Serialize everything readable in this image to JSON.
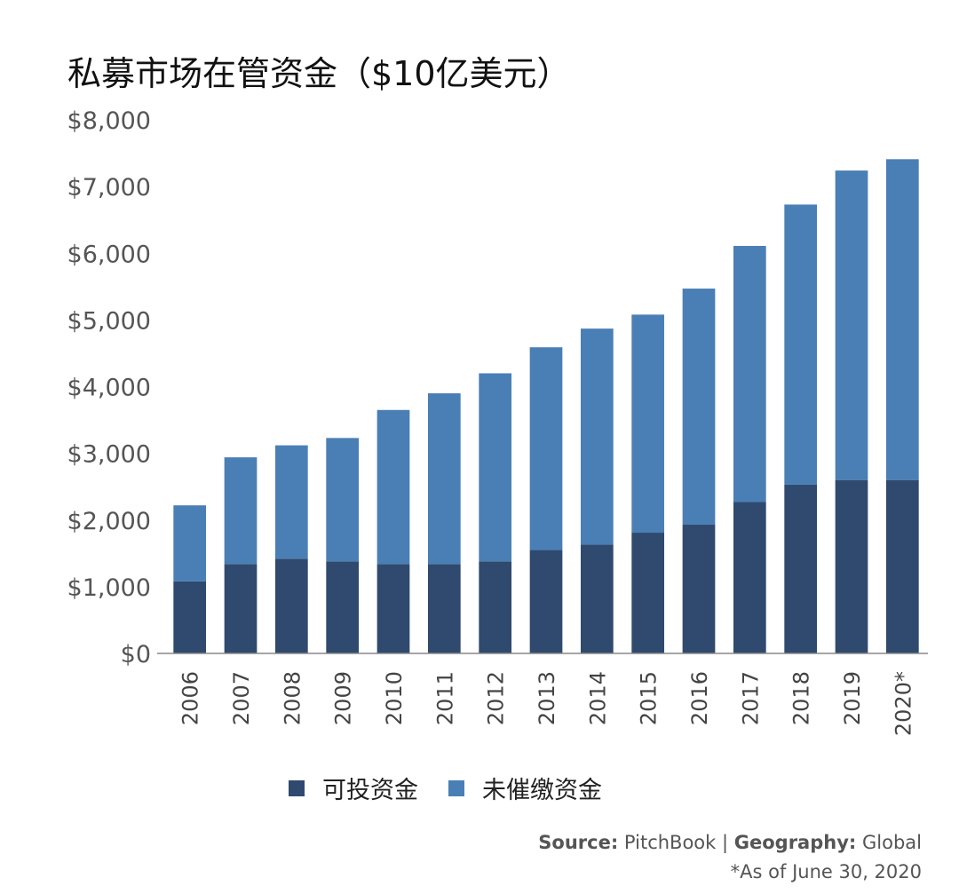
{
  "chart_data": {
    "type": "bar",
    "stacked": true,
    "title": "私募市场在管资金（$10亿美元）",
    "categories": [
      "2006",
      "2007",
      "2008",
      "2009",
      "2010",
      "2011",
      "2012",
      "2013",
      "2014",
      "2015",
      "2016",
      "2017",
      "2018",
      "2019",
      "2020*"
    ],
    "series": [
      {
        "name": "可投资金",
        "color": "#2f4a6e",
        "values": [
          1080,
          1340,
          1420,
          1380,
          1340,
          1340,
          1380,
          1550,
          1630,
          1810,
          1930,
          2270,
          2530,
          2600,
          2600
        ]
      },
      {
        "name": "未催缴资金",
        "color": "#4a7fb5",
        "values": [
          1140,
          1600,
          1700,
          1850,
          2310,
          2560,
          2820,
          3040,
          3240,
          3270,
          3540,
          3840,
          4200,
          4640,
          4810
        ]
      }
    ],
    "ylim": [
      0,
      8000
    ],
    "yticks": [
      0,
      1000,
      2000,
      3000,
      4000,
      5000,
      6000,
      7000,
      8000
    ],
    "ytick_labels": [
      "$0",
      "$1,000",
      "$2,000",
      "$3,000",
      "$4,000",
      "$5,000",
      "$6,000",
      "$7,000",
      "$8,000"
    ],
    "xlabel": "",
    "ylabel": "",
    "legend_position": "bottom"
  },
  "source": {
    "source_label": "Source:",
    "source_value": "PitchBook",
    "separator": "|",
    "geo_label": "Geography:",
    "geo_value": "Global"
  },
  "footnote": "*As of June 30, 2020"
}
